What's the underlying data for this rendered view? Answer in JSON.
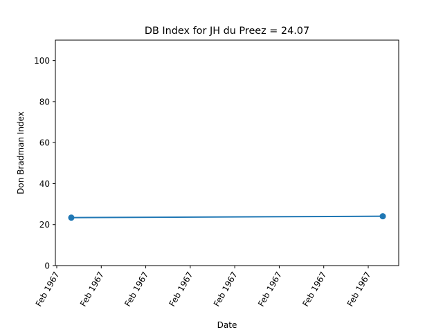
{
  "chart_data": {
    "type": "line",
    "title": "DB Index for JH du Preez = 24.07",
    "xlabel": "Date",
    "ylabel": "Don Bradman Index",
    "x_tick_labels": [
      "Feb 1967",
      "Feb 1967",
      "Feb 1967",
      "Feb 1967",
      "Feb 1967",
      "Feb 1967",
      "Feb 1967",
      "Feb 1967"
    ],
    "y_ticks": [
      0,
      20,
      40,
      60,
      80,
      100
    ],
    "ylim": [
      0,
      110
    ],
    "grid": false,
    "series": [
      {
        "x": [
          "Feb 1967",
          "Feb 1967"
        ],
        "values": [
          23.4,
          24.07
        ]
      }
    ],
    "colors": {
      "line": "#1f77b4",
      "axes": "#000000",
      "background": "#ffffff"
    }
  }
}
